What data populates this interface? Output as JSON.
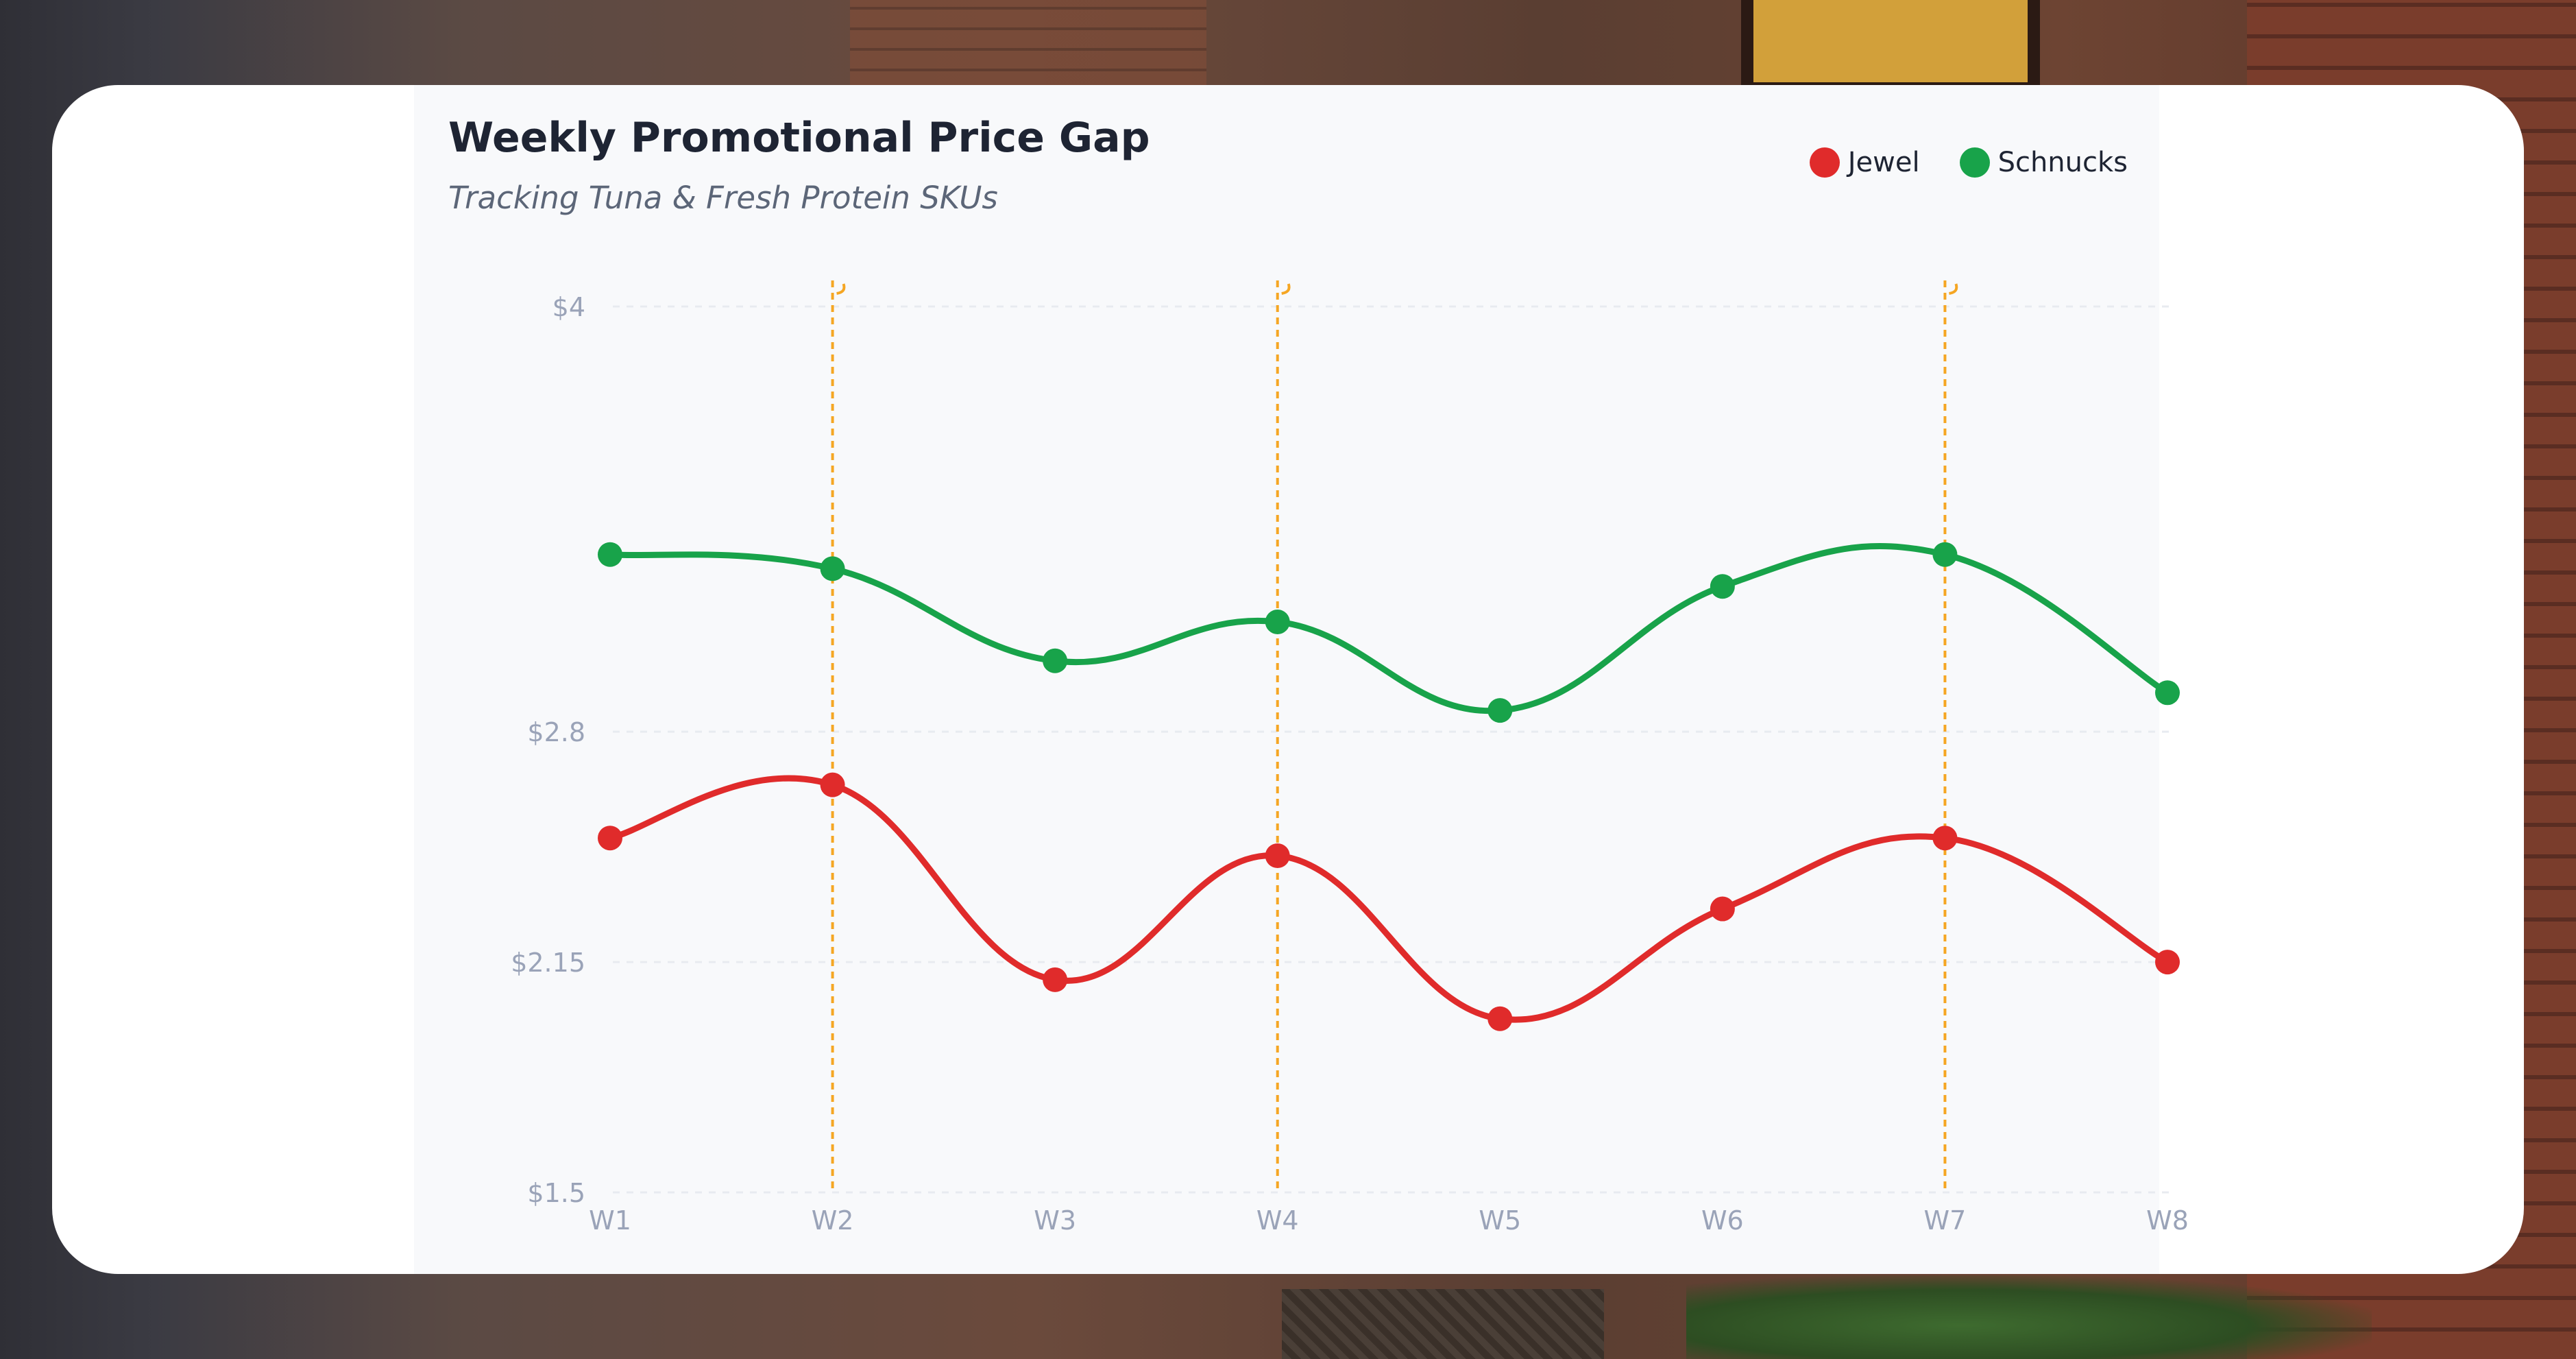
{
  "chart_data": {
    "type": "line",
    "title": "Weekly Promotional Price Gap",
    "subtitle": "Tracking Tuna & Fresh Protein SKUs",
    "categories": [
      "W1",
      "W2",
      "W3",
      "W4",
      "W5",
      "W6",
      "W7",
      "W8"
    ],
    "series": [
      {
        "name": "Jewel",
        "color": "#e02b2b",
        "values": [
          2.5,
          2.65,
          2.1,
          2.45,
          1.99,
          2.3,
          2.5,
          2.15
        ]
      },
      {
        "name": "Schnucks",
        "color": "#18a34a",
        "values": [
          3.3,
          3.26,
          3.0,
          3.11,
          2.86,
          3.21,
          3.3,
          2.91
        ]
      }
    ],
    "yticks": [
      {
        "value": 4,
        "label": "$4"
      },
      {
        "value": 2.8,
        "label": "$2.8"
      },
      {
        "value": 2.15,
        "label": "$2.15"
      },
      {
        "value": 1.5,
        "label": "$1.5"
      }
    ],
    "ylim": [
      1.5,
      4
    ],
    "promo_weeks": [
      "W2",
      "W4",
      "W7"
    ],
    "promo_line_color": "#f5a623",
    "grid": true,
    "legend_position": "top-right",
    "smooth": true
  }
}
